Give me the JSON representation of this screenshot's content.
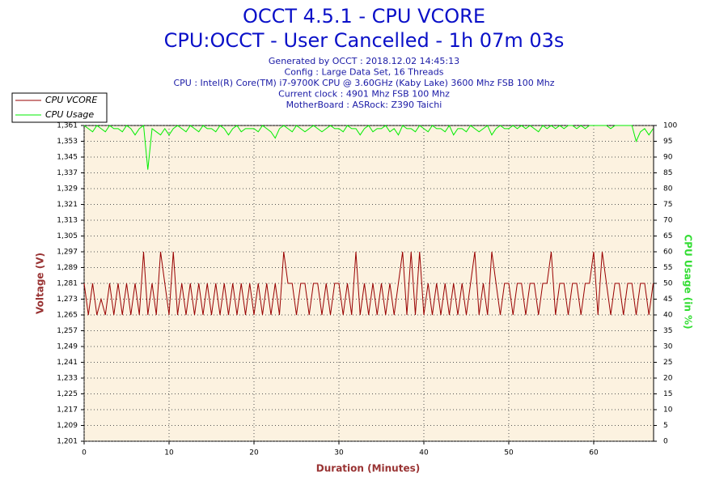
{
  "chart_data": {
    "type": "line",
    "title": "OCCT 4.5.1 - CPU VCORE",
    "subtitle": "CPU:OCCT - User Cancelled - 1h 07m 03s",
    "info": [
      "Generated by OCCT : 2018.12.02 14:45:13",
      "Config : Large Data Set, 16 Threads",
      "CPU : Intel(R) Core(TM) i7-9700K CPU @ 3.60GHz (Kaby Lake) 3600 Mhz FSB 100 Mhz",
      "Current clock : 4901 Mhz FSB 100 Mhz",
      "MotherBoard : ASRock: Z390 Taichi"
    ],
    "xlabel": "Duration (Minutes)",
    "ylabel": "Voltage (V)",
    "y2label": "CPU Usage (in %)",
    "xlim": [
      0,
      67.05
    ],
    "xticks": [
      0,
      10,
      20,
      30,
      40,
      50,
      60
    ],
    "ylim": [
      1.201,
      1.361
    ],
    "yticks": [
      {
        "value": 1.201,
        "label": "1,201"
      },
      {
        "value": 1.209,
        "label": "1,209"
      },
      {
        "value": 1.217,
        "label": "1,217"
      },
      {
        "value": 1.225,
        "label": "1,225"
      },
      {
        "value": 1.233,
        "label": "1,233"
      },
      {
        "value": 1.241,
        "label": "1,241"
      },
      {
        "value": 1.249,
        "label": "1,249"
      },
      {
        "value": 1.257,
        "label": "1,257"
      },
      {
        "value": 1.265,
        "label": "1,265"
      },
      {
        "value": 1.273,
        "label": "1,273"
      },
      {
        "value": 1.281,
        "label": "1,281"
      },
      {
        "value": 1.289,
        "label": "1,289"
      },
      {
        "value": 1.297,
        "label": "1,297"
      },
      {
        "value": 1.305,
        "label": "1,305"
      },
      {
        "value": 1.313,
        "label": "1,313"
      },
      {
        "value": 1.321,
        "label": "1,321"
      },
      {
        "value": 1.329,
        "label": "1,329"
      },
      {
        "value": 1.337,
        "label": "1,337"
      },
      {
        "value": 1.345,
        "label": "1,345"
      },
      {
        "value": 1.353,
        "label": "1,353"
      },
      {
        "value": 1.361,
        "label": "1,361"
      }
    ],
    "y2lim": [
      0,
      100
    ],
    "y2ticks": [
      0,
      5,
      10,
      15,
      20,
      25,
      30,
      35,
      40,
      45,
      50,
      55,
      60,
      65,
      70,
      75,
      80,
      85,
      90,
      95,
      100
    ],
    "grid": true,
    "legend": "top-left",
    "x": [
      0,
      0.5,
      1,
      1.5,
      2,
      2.5,
      3,
      3.5,
      4,
      4.5,
      5,
      5.5,
      6,
      6.5,
      7,
      7.5,
      8,
      8.5,
      9,
      9.5,
      10,
      10.5,
      11,
      11.5,
      12,
      12.5,
      13,
      13.5,
      14,
      14.5,
      15,
      15.5,
      16,
      16.5,
      17,
      17.5,
      18,
      18.5,
      19,
      19.5,
      20,
      20.5,
      21,
      21.5,
      22,
      22.5,
      23,
      23.5,
      24,
      24.5,
      25,
      25.5,
      26,
      26.5,
      27,
      27.5,
      28,
      28.5,
      29,
      29.5,
      30,
      30.5,
      31,
      31.5,
      32,
      32.5,
      33,
      33.5,
      34,
      34.5,
      35,
      35.5,
      36,
      36.5,
      37,
      37.5,
      38,
      38.5,
      39,
      39.5,
      40,
      40.5,
      41,
      41.5,
      42,
      42.5,
      43,
      43.5,
      44,
      44.5,
      45,
      45.5,
      46,
      46.5,
      47,
      47.5,
      48,
      48.5,
      49,
      49.5,
      50,
      50.5,
      51,
      51.5,
      52,
      52.5,
      53,
      53.5,
      54,
      54.5,
      55,
      55.5,
      56,
      56.5,
      57,
      57.5,
      58,
      58.5,
      59,
      59.5,
      60,
      60.5,
      61,
      61.5,
      62,
      62.5,
      63,
      63.5,
      64,
      64.5,
      65,
      65.5,
      66,
      66.5,
      67
    ],
    "series": [
      {
        "name": "CPU VCORE",
        "color": "#990000",
        "values": [
          1.281,
          1.265,
          1.281,
          1.265,
          1.273,
          1.265,
          1.281,
          1.265,
          1.281,
          1.265,
          1.281,
          1.265,
          1.281,
          1.265,
          1.297,
          1.265,
          1.281,
          1.265,
          1.297,
          1.281,
          1.265,
          1.297,
          1.265,
          1.281,
          1.265,
          1.281,
          1.265,
          1.281,
          1.265,
          1.281,
          1.265,
          1.281,
          1.265,
          1.281,
          1.265,
          1.281,
          1.265,
          1.281,
          1.265,
          1.281,
          1.265,
          1.281,
          1.265,
          1.281,
          1.265,
          1.281,
          1.265,
          1.297,
          1.281,
          1.281,
          1.265,
          1.281,
          1.281,
          1.265,
          1.281,
          1.281,
          1.265,
          1.281,
          1.265,
          1.281,
          1.281,
          1.265,
          1.281,
          1.265,
          1.297,
          1.265,
          1.281,
          1.265,
          1.281,
          1.265,
          1.281,
          1.265,
          1.281,
          1.265,
          1.281,
          1.297,
          1.265,
          1.297,
          1.265,
          1.297,
          1.265,
          1.281,
          1.265,
          1.281,
          1.265,
          1.281,
          1.265,
          1.281,
          1.265,
          1.281,
          1.265,
          1.281,
          1.297,
          1.265,
          1.281,
          1.265,
          1.297,
          1.281,
          1.265,
          1.281,
          1.281,
          1.265,
          1.281,
          1.281,
          1.265,
          1.281,
          1.281,
          1.265,
          1.281,
          1.281,
          1.297,
          1.265,
          1.281,
          1.281,
          1.265,
          1.281,
          1.281,
          1.265,
          1.281,
          1.281,
          1.297,
          1.265,
          1.297,
          1.281,
          1.265,
          1.281,
          1.281,
          1.265,
          1.281,
          1.281,
          1.265,
          1.281,
          1.281,
          1.265,
          1.281
        ]
      },
      {
        "name": "CPU Usage",
        "color": "#00ee00",
        "axis": "y2",
        "values": [
          100,
          99,
          98,
          100,
          99,
          98,
          100,
          99,
          99,
          98,
          100,
          99,
          97,
          99,
          100,
          86,
          99,
          98,
          97,
          99,
          97,
          99,
          100,
          99,
          98,
          100,
          99,
          98,
          100,
          99,
          99,
          98,
          100,
          99,
          97,
          99,
          100,
          98,
          99,
          99,
          99,
          98,
          100,
          99,
          98,
          96,
          99,
          100,
          99,
          98,
          100,
          99,
          98,
          99,
          100,
          99,
          98,
          99,
          100,
          99,
          99,
          98,
          100,
          99,
          99,
          97,
          99,
          100,
          98,
          99,
          99,
          100,
          98,
          99,
          97,
          100,
          99,
          99,
          98,
          100,
          99,
          98,
          100,
          99,
          99,
          98,
          100,
          97,
          99,
          99,
          98,
          100,
          99,
          98,
          99,
          100,
          97,
          99,
          100,
          99,
          99,
          100,
          99,
          100,
          99,
          100,
          99,
          98,
          100,
          99,
          100,
          99,
          100,
          99,
          100,
          100,
          99,
          100,
          99,
          100,
          100,
          100,
          100,
          100,
          99,
          100,
          100,
          100,
          100,
          100,
          95,
          98,
          99,
          97,
          99
        ]
      }
    ]
  }
}
